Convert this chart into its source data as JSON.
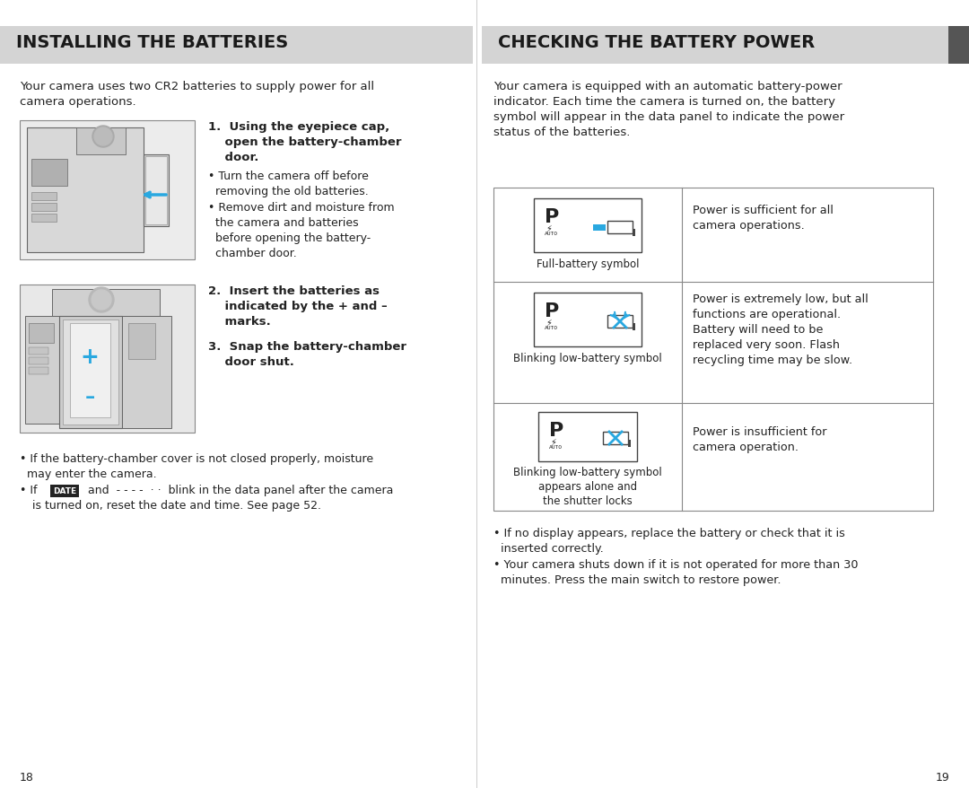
{
  "bg_color": "#ffffff",
  "header_bg": "#d4d4d4",
  "header_text_color": "#1a1a1a",
  "body_text_color": "#222222",
  "accent_color": "#29a8e0",
  "left_header": "INSTALLING THE BATTERIES",
  "right_header": "CHECKING THE BATTERY POWER",
  "left_intro": "Your camera uses two CR2 batteries to supply power for all\ncamera operations.",
  "step1_bold": "1.  Using the eyepiece cap,\n    open the battery-chamber\n    door.",
  "step1_b1": "• Turn the camera off before\n  removing the old batteries.",
  "step1_b2": "• Remove dirt and moisture from\n  the camera and batteries\n  before opening the battery-\n  chamber door.",
  "step2_bold": "2.  Insert the batteries as\n    indicated by the + and –\n    marks.",
  "step3_bold": "3.  Snap the battery-chamber\n    door shut.",
  "left_footer1": "• If the battery-chamber cover is not closed properly, moisture\n  may enter the camera.",
  "left_footer2": "• If  DATE  and  - - - -  · ·  blink in the data panel after the camera\n  is turned on, reset the date and time. See page 52.",
  "right_intro": "Your camera is equipped with an automatic battery-power\nindicator. Each time the camera is turned on, the battery\nsymbol will appear in the data panel to indicate the power\nstatus of the batteries.",
  "right_row1_label": "Full-battery symbol",
  "right_row1_desc": "Power is sufficient for all\ncamera operations.",
  "right_row2_label": "Blinking low-battery symbol",
  "right_row2_desc": "Power is extremely low, but all\nfunctions are operational.\nBattery will need to be\nreplaced very soon. Flash\nrecycling time may be slow.",
  "right_row3_label": "Blinking low-battery symbol\nappears alone and\nthe shutter locks",
  "right_row3_desc": "Power is insufficient for\ncamera operation.",
  "right_footer1": "• If no display appears, replace the battery or check that it is\n  inserted correctly.",
  "right_footer2": "• Your camera shuts down if it is not operated for more than 30\n  minutes. Press the main switch to restore power.",
  "page_left": "18",
  "page_right": "19"
}
